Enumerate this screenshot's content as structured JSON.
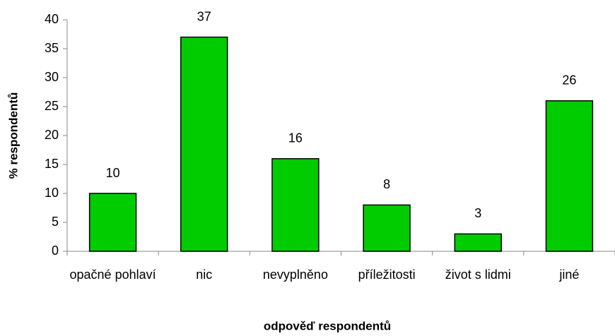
{
  "chart_data": {
    "type": "bar",
    "categories": [
      "opačné pohlaví",
      "nic",
      "nevyplněno",
      "příležitosti",
      "život s lidmi",
      "jiné"
    ],
    "values": [
      10,
      37,
      16,
      8,
      3,
      26
    ],
    "color": "#00cc00",
    "ylim": [
      0,
      40
    ],
    "yticks": [
      0,
      5,
      10,
      15,
      20,
      25,
      30,
      35,
      40
    ],
    "x_label": "odpověď respondentů",
    "y_label": "% respondentů",
    "grid": false
  }
}
